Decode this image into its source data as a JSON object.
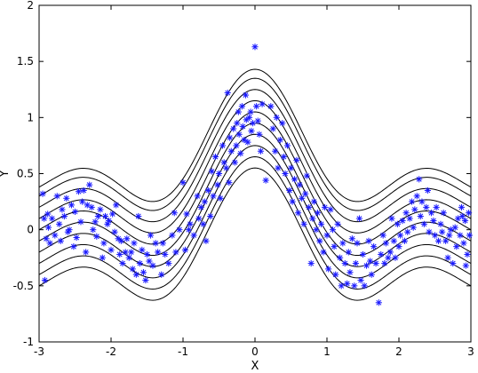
{
  "chart_data": {
    "type": "scatter",
    "title": "",
    "xlabel": "X",
    "ylabel": "Y",
    "xlim": [
      -3,
      3
    ],
    "ylim": [
      -1,
      2
    ],
    "x_ticks": [
      -3,
      -2,
      -1,
      0,
      1,
      2,
      3
    ],
    "x_tick_labels": [
      "-3",
      "-2",
      "-1",
      "0",
      "1",
      "2",
      "3"
    ],
    "y_ticks": [
      -1,
      -0.5,
      0,
      0.5,
      1,
      1.5,
      2
    ],
    "y_tick_labels": [
      "-1",
      "-0.5",
      "0",
      "0.5",
      "1",
      "1.5",
      "2"
    ],
    "grid": false,
    "legend": "none",
    "point_color": "#1a1aff",
    "curve_color": "#000000",
    "marker": "asterisk",
    "curves": {
      "description_free_model": "sinc-like curve family",
      "offsets": [
        -0.4,
        -0.3,
        -0.2,
        -0.1,
        0.0,
        0.1,
        0.2,
        0.3,
        0.4,
        0.48
      ]
    },
    "points": [
      [
        -2.95,
        0.32
      ],
      [
        -2.93,
        0.1
      ],
      [
        -2.9,
        -0.08
      ],
      [
        -2.88,
        0.14
      ],
      [
        -2.92,
        -0.45
      ],
      [
        -2.87,
        0.02
      ],
      [
        -2.85,
        -0.12
      ],
      [
        -2.82,
        0.1
      ],
      [
        -2.78,
        -0.05
      ],
      [
        -2.75,
        0.3
      ],
      [
        -2.72,
        0.05
      ],
      [
        -2.7,
        -0.1
      ],
      [
        -2.68,
        0.18
      ],
      [
        -2.65,
        0.12
      ],
      [
        -2.62,
        0.28
      ],
      [
        -2.6,
        -0.02
      ],
      [
        -2.58,
        0.0
      ],
      [
        -2.55,
        0.22
      ],
      [
        -2.52,
        -0.15
      ],
      [
        -2.5,
        0.16
      ],
      [
        -2.48,
        -0.07
      ],
      [
        -2.45,
        0.34
      ],
      [
        -2.42,
        0.07
      ],
      [
        -2.4,
        0.25
      ],
      [
        -2.38,
        0.35
      ],
      [
        -2.35,
        -0.2
      ],
      [
        -2.33,
        0.22
      ],
      [
        -2.3,
        0.4
      ],
      [
        -2.27,
        0.2
      ],
      [
        -2.25,
        0.0
      ],
      [
        -2.22,
        0.07
      ],
      [
        -2.2,
        -0.06
      ],
      [
        -2.18,
        0.12
      ],
      [
        -2.15,
        0.18
      ],
      [
        -2.12,
        -0.25
      ],
      [
        -2.1,
        -0.12
      ],
      [
        -2.08,
        0.12
      ],
      [
        -2.05,
        0.05
      ],
      [
        -2.03,
        0.08
      ],
      [
        -2.0,
        -0.18
      ],
      [
        -1.98,
        0.14
      ],
      [
        -1.95,
        -0.02
      ],
      [
        -1.93,
        0.22
      ],
      [
        -1.9,
        -0.08
      ],
      [
        -1.88,
        -0.22
      ],
      [
        -1.86,
        -0.1
      ],
      [
        -1.84,
        -0.3
      ],
      [
        -1.8,
        -0.2
      ],
      [
        -1.78,
        -0.08
      ],
      [
        -1.75,
        -0.25
      ],
      [
        -1.72,
        -0.2
      ],
      [
        -1.7,
        -0.35
      ],
      [
        -1.68,
        -0.12
      ],
      [
        -1.65,
        -0.4
      ],
      [
        -1.62,
        0.12
      ],
      [
        -1.6,
        -0.3
      ],
      [
        -1.57,
        -0.18
      ],
      [
        -1.55,
        -0.38
      ],
      [
        -1.52,
        -0.45
      ],
      [
        -1.5,
        -0.22
      ],
      [
        -1.47,
        -0.28
      ],
      [
        -1.45,
        -0.05
      ],
      [
        -1.42,
        -0.32
      ],
      [
        -1.38,
        -0.12
      ],
      [
        -1.35,
        -0.2
      ],
      [
        -1.3,
        -0.4
      ],
      [
        -1.28,
        -0.12
      ],
      [
        -1.25,
        -0.22
      ],
      [
        -1.2,
        -0.3
      ],
      [
        -1.15,
        -0.05
      ],
      [
        -1.12,
        0.15
      ],
      [
        -1.1,
        -0.2
      ],
      [
        -1.05,
        0.0
      ],
      [
        -1.0,
        0.42
      ],
      [
        -0.97,
        -0.18
      ],
      [
        -0.95,
        0.14
      ],
      [
        -0.92,
        0.0
      ],
      [
        -0.9,
        0.05
      ],
      [
        -0.85,
        -0.05
      ],
      [
        -0.8,
        0.3
      ],
      [
        -0.78,
        0.1
      ],
      [
        -0.75,
        0.2
      ],
      [
        -0.72,
        0.05
      ],
      [
        -0.7,
        0.25
      ],
      [
        -0.68,
        -0.1
      ],
      [
        -0.65,
        0.35
      ],
      [
        -0.62,
        0.12
      ],
      [
        -0.6,
        0.52
      ],
      [
        -0.58,
        0.3
      ],
      [
        -0.55,
        0.65
      ],
      [
        -0.52,
        0.4
      ],
      [
        -0.5,
        0.5
      ],
      [
        -0.48,
        0.28
      ],
      [
        -0.45,
        0.75
      ],
      [
        -0.43,
        0.6
      ],
      [
        -0.4,
        0.55
      ],
      [
        -0.38,
        1.22
      ],
      [
        -0.36,
        0.42
      ],
      [
        -0.35,
        0.82
      ],
      [
        -0.33,
        0.7
      ],
      [
        -0.3,
        0.9
      ],
      [
        -0.28,
        0.6
      ],
      [
        -0.26,
        0.75
      ],
      [
        -0.25,
        0.95
      ],
      [
        -0.23,
        1.05
      ],
      [
        -0.22,
        0.85
      ],
      [
        -0.2,
        0.68
      ],
      [
        -0.18,
        1.1
      ],
      [
        -0.17,
        0.92
      ],
      [
        -0.15,
        0.8
      ],
      [
        -0.13,
        1.2
      ],
      [
        -0.12,
        0.98
      ],
      [
        -0.1,
        0.78
      ],
      [
        -0.08,
        1.0
      ],
      [
        -0.06,
        1.05
      ],
      [
        -0.05,
        0.88
      ],
      [
        -0.03,
        0.95
      ],
      [
        0.0,
        1.63
      ],
      [
        0.02,
        1.1
      ],
      [
        0.04,
        0.97
      ],
      [
        0.06,
        0.85
      ],
      [
        0.08,
        0.7
      ],
      [
        0.1,
        1.12
      ],
      [
        0.15,
        0.44
      ],
      [
        0.22,
        1.1
      ],
      [
        0.25,
        0.9
      ],
      [
        0.28,
        0.7
      ],
      [
        0.3,
        1.0
      ],
      [
        0.32,
        0.55
      ],
      [
        0.35,
        0.8
      ],
      [
        0.38,
        0.95
      ],
      [
        0.4,
        0.65
      ],
      [
        0.42,
        0.5
      ],
      [
        0.45,
        0.75
      ],
      [
        0.48,
        0.35
      ],
      [
        0.5,
        0.55
      ],
      [
        0.52,
        0.25
      ],
      [
        0.55,
        0.45
      ],
      [
        0.58,
        0.62
      ],
      [
        0.6,
        0.15
      ],
      [
        0.62,
        0.4
      ],
      [
        0.65,
        0.28
      ],
      [
        0.68,
        0.05
      ],
      [
        0.7,
        0.32
      ],
      [
        0.72,
        0.48
      ],
      [
        0.75,
        0.2
      ],
      [
        0.78,
        -0.3
      ],
      [
        0.8,
        0.1
      ],
      [
        0.82,
        0.25
      ],
      [
        0.85,
        0.0
      ],
      [
        0.87,
        0.15
      ],
      [
        0.9,
        -0.1
      ],
      [
        0.92,
        0.05
      ],
      [
        0.95,
        -0.2
      ],
      [
        0.97,
        0.2
      ],
      [
        1.0,
        -0.05
      ],
      [
        1.02,
        -0.35
      ],
      [
        1.05,
        0.18
      ],
      [
        1.08,
        0.0
      ],
      [
        1.1,
        -0.15
      ],
      [
        1.12,
        -0.4
      ],
      [
        1.15,
        0.05
      ],
      [
        1.18,
        -0.25
      ],
      [
        1.2,
        -0.5
      ],
      [
        1.22,
        -0.12
      ],
      [
        1.25,
        -0.3
      ],
      [
        1.28,
        -0.48
      ],
      [
        1.3,
        -0.2
      ],
      [
        1.32,
        -0.38
      ],
      [
        1.35,
        -0.08
      ],
      [
        1.38,
        -0.5
      ],
      [
        1.4,
        -0.3
      ],
      [
        1.42,
        -0.12
      ],
      [
        1.45,
        0.1
      ],
      [
        1.47,
        -0.45
      ],
      [
        1.5,
        -0.22
      ],
      [
        1.52,
        -0.5
      ],
      [
        1.55,
        -0.32
      ],
      [
        1.58,
        -0.1
      ],
      [
        1.6,
        -0.28
      ],
      [
        1.62,
        -0.4
      ],
      [
        1.65,
        -0.15
      ],
      [
        1.68,
        -0.3
      ],
      [
        1.72,
        -0.65
      ],
      [
        1.75,
        -0.22
      ],
      [
        1.78,
        -0.05
      ],
      [
        1.8,
        -0.3
      ],
      [
        1.82,
        -0.12
      ],
      [
        1.85,
        -0.25
      ],
      [
        1.88,
        -0.2
      ],
      [
        1.9,
        0.1
      ],
      [
        1.93,
        -0.1
      ],
      [
        1.95,
        -0.25
      ],
      [
        1.98,
        0.05
      ],
      [
        2.0,
        -0.15
      ],
      [
        2.02,
        -0.05
      ],
      [
        2.05,
        0.08
      ],
      [
        2.08,
        -0.1
      ],
      [
        2.1,
        0.15
      ],
      [
        2.12,
        -0.02
      ],
      [
        2.15,
        0.1
      ],
      [
        2.18,
        0.25
      ],
      [
        2.2,
        0.02
      ],
      [
        2.22,
        0.18
      ],
      [
        2.25,
        0.3
      ],
      [
        2.28,
        0.45
      ],
      [
        2.3,
        0.12
      ],
      [
        2.32,
        0.25
      ],
      [
        2.35,
        0.05
      ],
      [
        2.38,
        0.2
      ],
      [
        2.4,
        0.35
      ],
      [
        2.42,
        -0.02
      ],
      [
        2.45,
        0.15
      ],
      [
        2.48,
        0.08
      ],
      [
        2.5,
        -0.05
      ],
      [
        2.52,
        0.2
      ],
      [
        2.55,
        -0.1
      ],
      [
        2.58,
        0.05
      ],
      [
        2.6,
        -0.02
      ],
      [
        2.62,
        0.15
      ],
      [
        2.65,
        -0.1
      ],
      [
        2.68,
        -0.25
      ],
      [
        2.7,
        -0.05
      ],
      [
        2.72,
        0.0
      ],
      [
        2.75,
        -0.3
      ],
      [
        2.78,
        0.02
      ],
      [
        2.8,
        -0.15
      ],
      [
        2.82,
        0.1
      ],
      [
        2.85,
        -0.05
      ],
      [
        2.87,
        0.2
      ],
      [
        2.88,
        0.12
      ],
      [
        2.9,
        -0.12
      ],
      [
        2.92,
        0.08
      ],
      [
        2.93,
        -0.32
      ],
      [
        2.95,
        -0.22
      ],
      [
        2.97,
        0.15
      ],
      [
        2.98,
        -0.05
      ]
    ]
  }
}
